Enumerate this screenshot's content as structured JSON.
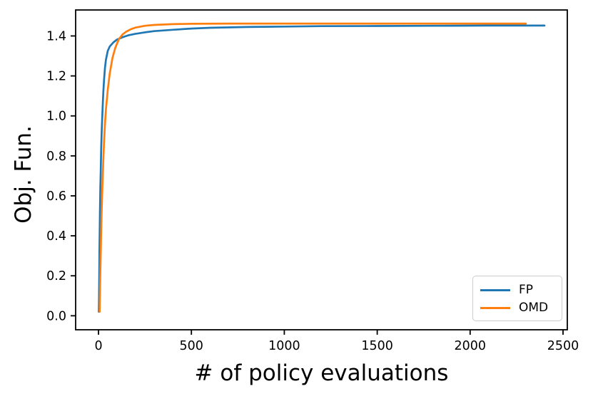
{
  "chart_data": {
    "type": "line",
    "title": "",
    "xlabel": "# of policy evaluations",
    "ylabel": "Obj. Fun.",
    "xlim": [
      -123,
      2523
    ],
    "ylim": [
      -0.07,
      1.53
    ],
    "x_ticks": [
      0,
      500,
      1000,
      1500,
      2000,
      2500
    ],
    "y_ticks": [
      0.0,
      0.2,
      0.4,
      0.6,
      0.8,
      1.0,
      1.2,
      1.4
    ],
    "grid": false,
    "legend": {
      "position": "lower right",
      "entries": [
        "FP",
        "OMD"
      ]
    },
    "axis_color": "#000000",
    "background": "#ffffff",
    "series": [
      {
        "name": "FP",
        "color": "#1f77b4",
        "points": [
          [
            2,
            0.02
          ],
          [
            3,
            0.1
          ],
          [
            4,
            0.2
          ],
          [
            5,
            0.3
          ],
          [
            6,
            0.39
          ],
          [
            8,
            0.53
          ],
          [
            10,
            0.64
          ],
          [
            12,
            0.73
          ],
          [
            15,
            0.85
          ],
          [
            18,
            0.94
          ],
          [
            22,
            1.04
          ],
          [
            26,
            1.12
          ],
          [
            30,
            1.18
          ],
          [
            35,
            1.24
          ],
          [
            40,
            1.28
          ],
          [
            50,
            1.325
          ],
          [
            60,
            1.347
          ],
          [
            80,
            1.368
          ],
          [
            100,
            1.382
          ],
          [
            130,
            1.394
          ],
          [
            160,
            1.403
          ],
          [
            200,
            1.411
          ],
          [
            250,
            1.418
          ],
          [
            300,
            1.424
          ],
          [
            400,
            1.431
          ],
          [
            500,
            1.437
          ],
          [
            600,
            1.441
          ],
          [
            800,
            1.445
          ],
          [
            1000,
            1.447
          ],
          [
            1200,
            1.449
          ],
          [
            1500,
            1.45
          ],
          [
            1800,
            1.451
          ],
          [
            2100,
            1.452
          ],
          [
            2400,
            1.452
          ]
        ]
      },
      {
        "name": "OMD",
        "color": "#ff7f0e",
        "points": [
          [
            6,
            0.02
          ],
          [
            8,
            0.12
          ],
          [
            10,
            0.22
          ],
          [
            12,
            0.32
          ],
          [
            14,
            0.41
          ],
          [
            16,
            0.49
          ],
          [
            19,
            0.59
          ],
          [
            22,
            0.68
          ],
          [
            26,
            0.78
          ],
          [
            30,
            0.87
          ],
          [
            35,
            0.96
          ],
          [
            40,
            1.03
          ],
          [
            50,
            1.13
          ],
          [
            60,
            1.21
          ],
          [
            75,
            1.29
          ],
          [
            90,
            1.34
          ],
          [
            110,
            1.385
          ],
          [
            130,
            1.408
          ],
          [
            150,
            1.422
          ],
          [
            175,
            1.434
          ],
          [
            200,
            1.442
          ],
          [
            250,
            1.451
          ],
          [
            300,
            1.455
          ],
          [
            400,
            1.459
          ],
          [
            500,
            1.461
          ],
          [
            700,
            1.462
          ],
          [
            1000,
            1.462
          ],
          [
            1400,
            1.462
          ],
          [
            1800,
            1.462
          ],
          [
            2300,
            1.462
          ]
        ]
      }
    ],
    "tick_font_size": 17.5,
    "label_font_size": 31,
    "line_width": 2.7
  }
}
